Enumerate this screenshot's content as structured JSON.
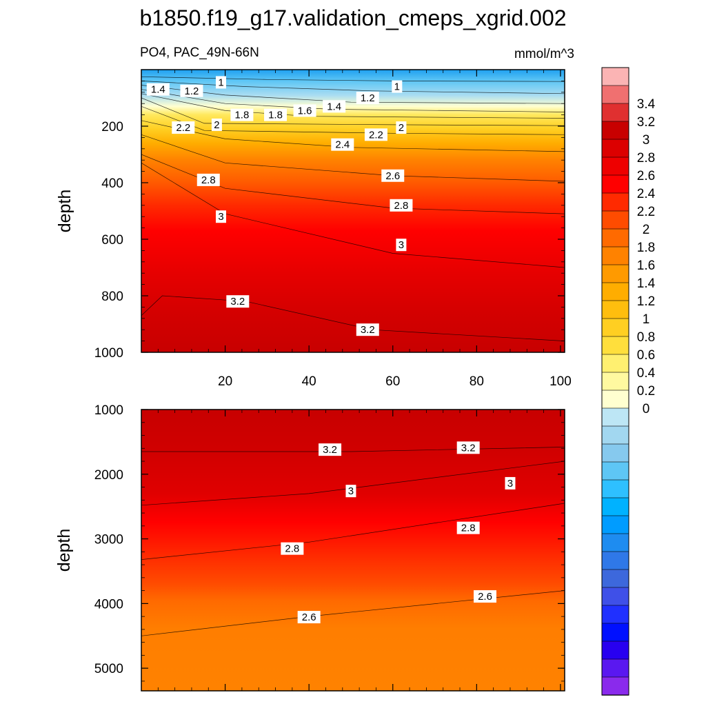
{
  "figure": {
    "title": "b1850.f19_g17.validation_cmeps_xgrid.002",
    "variable_region": "PO4, PAC_49N-66N",
    "units": "mmol/m^3"
  },
  "chart_data": [
    {
      "type": "heatmap",
      "panel": "upper",
      "ylabel": "depth",
      "xlabel": "",
      "xlim": [
        0,
        101
      ],
      "ylim": [
        1000,
        0
      ],
      "y_reversed": true,
      "xticks": [
        20,
        40,
        60,
        80,
        100
      ],
      "yticks": [
        200,
        400,
        600,
        800,
        1000
      ],
      "contours": [
        {
          "level": 1.0,
          "pts": [
            [
              0,
              25
            ],
            [
              30,
              35
            ],
            [
              60,
              40
            ],
            [
              101,
              42
            ]
          ]
        },
        {
          "level": 1.2,
          "pts": [
            [
              0,
              40
            ],
            [
              25,
              60
            ],
            [
              55,
              75
            ],
            [
              101,
              85
            ]
          ]
        },
        {
          "level": 1.4,
          "pts": [
            [
              0,
              55
            ],
            [
              20,
              90
            ],
            [
              50,
              115
            ],
            [
              101,
              120
            ]
          ]
        },
        {
          "level": 1.6,
          "pts": [
            [
              0,
              70
            ],
            [
              20,
              120
            ],
            [
              45,
              140
            ],
            [
              101,
              150
            ]
          ]
        },
        {
          "level": 1.8,
          "pts": [
            [
              0,
              85
            ],
            [
              20,
              145
            ],
            [
              40,
              165
            ],
            [
              101,
              172
            ]
          ]
        },
        {
          "level": 2.0,
          "pts": [
            [
              0,
              100
            ],
            [
              15,
              190
            ],
            [
              60,
              195
            ],
            [
              101,
              198
            ]
          ]
        },
        {
          "level": 2.2,
          "pts": [
            [
              0,
              130
            ],
            [
              15,
              215
            ],
            [
              60,
              225
            ],
            [
              101,
              230
            ]
          ]
        },
        {
          "level": 2.4,
          "pts": [
            [
              0,
              180
            ],
            [
              20,
              245
            ],
            [
              50,
              275
            ],
            [
              101,
              290
            ]
          ]
        },
        {
          "level": 2.6,
          "pts": [
            [
              0,
              230
            ],
            [
              20,
              330
            ],
            [
              60,
              375
            ],
            [
              101,
              395
            ]
          ]
        },
        {
          "level": 2.8,
          "pts": [
            [
              0,
              300
            ],
            [
              20,
              420
            ],
            [
              60,
              490
            ],
            [
              101,
              510
            ]
          ]
        },
        {
          "level": 3.0,
          "pts": [
            [
              0,
              330
            ],
            [
              20,
              510
            ],
            [
              60,
              650
            ],
            [
              101,
              700
            ]
          ]
        },
        {
          "level": 3.2,
          "pts": [
            [
              0,
              870
            ],
            [
              5,
              800
            ],
            [
              25,
              820
            ],
            [
              55,
              920
            ],
            [
              101,
              960
            ]
          ]
        }
      ],
      "contour_labels": [
        {
          "text": "1",
          "x": 19,
          "y": 45
        },
        {
          "text": "1",
          "x": 61,
          "y": 60
        },
        {
          "text": "1.4",
          "x": 4,
          "y": 70
        },
        {
          "text": "1.2",
          "x": 12,
          "y": 75
        },
        {
          "text": "1.2",
          "x": 54,
          "y": 100
        },
        {
          "text": "1.8",
          "x": 24,
          "y": 160
        },
        {
          "text": "1.8",
          "x": 32,
          "y": 160
        },
        {
          "text": "1.6",
          "x": 39,
          "y": 145
        },
        {
          "text": "1.4",
          "x": 46,
          "y": 130
        },
        {
          "text": "2",
          "x": 18,
          "y": 195
        },
        {
          "text": "2.2",
          "x": 10,
          "y": 205
        },
        {
          "text": "2",
          "x": 62,
          "y": 205
        },
        {
          "text": "2.2",
          "x": 56,
          "y": 230
        },
        {
          "text": "2.4",
          "x": 48,
          "y": 265
        },
        {
          "text": "2.6",
          "x": 60,
          "y": 375
        },
        {
          "text": "2.8",
          "x": 16,
          "y": 390
        },
        {
          "text": "2.8",
          "x": 62,
          "y": 480
        },
        {
          "text": "3",
          "x": 19,
          "y": 520
        },
        {
          "text": "3",
          "x": 62,
          "y": 620
        },
        {
          "text": "3.2",
          "x": 23,
          "y": 820
        },
        {
          "text": "3.2",
          "x": 54,
          "y": 920
        }
      ]
    },
    {
      "type": "heatmap",
      "panel": "lower",
      "ylabel": "depth",
      "xlabel": "",
      "xlim": [
        0,
        101
      ],
      "ylim": [
        5350,
        1000
      ],
      "y_reversed": true,
      "xticks": [
        20,
        40,
        60,
        80,
        100
      ],
      "yticks": [
        1000,
        2000,
        3000,
        4000,
        5000
      ],
      "contours": [
        {
          "level": 3.2,
          "pts": [
            [
              0,
              1650
            ],
            [
              50,
              1650
            ],
            [
              101,
              1580
            ]
          ]
        },
        {
          "level": 3.0,
          "pts": [
            [
              0,
              2480
            ],
            [
              40,
              2300
            ],
            [
              101,
              1800
            ]
          ]
        },
        {
          "level": 2.8,
          "pts": [
            [
              0,
              3320
            ],
            [
              40,
              3050
            ],
            [
              101,
              2450
            ]
          ]
        },
        {
          "level": 2.6,
          "pts": [
            [
              0,
              4500
            ],
            [
              40,
              4200
            ],
            [
              101,
              3800
            ]
          ]
        }
      ],
      "contour_labels": [
        {
          "text": "3.2",
          "x": 45,
          "y": 1620
        },
        {
          "text": "3.2",
          "x": 78,
          "y": 1590
        },
        {
          "text": "3",
          "x": 50,
          "y": 2260
        },
        {
          "text": "3",
          "x": 88,
          "y": 2140
        },
        {
          "text": "2.8",
          "x": 36,
          "y": 3150
        },
        {
          "text": "2.8",
          "x": 78,
          "y": 2830
        },
        {
          "text": "2.6",
          "x": 40,
          "y": 4210
        },
        {
          "text": "2.6",
          "x": 82,
          "y": 3890
        }
      ]
    }
  ],
  "colorbar": {
    "ticks": [
      "3.4",
      "3.2",
      "3",
      "2.8",
      "2.6",
      "2.4",
      "2.2",
      "2",
      "1.8",
      "1.6",
      "1.4",
      "1.2",
      "1",
      "0.8",
      "0.6",
      "0.4",
      "0.2",
      "0"
    ],
    "colors_top_to_bottom": [
      "#fbb4b4",
      "#f07070",
      "#e03030",
      "#c80000",
      "#dc0000",
      "#ee0000",
      "#ff0000",
      "#ff2a00",
      "#ff4c00",
      "#ff6a00",
      "#ff8200",
      "#ff9a00",
      "#ffad00",
      "#ffbe0e",
      "#ffcf22",
      "#ffdf3c",
      "#fff070",
      "#fff9a0",
      "#ffffd0",
      "#bde6f5",
      "#a2d7f0",
      "#86c9ee",
      "#5ec6f5",
      "#2ec0ff",
      "#00b2ff",
      "#009cff",
      "#1e8cf0",
      "#2f78e8",
      "#3d68dc",
      "#3f50e8",
      "#2030ff",
      "#0010ff",
      "#2800f0",
      "#5a18f0",
      "#8a2aec"
    ]
  }
}
